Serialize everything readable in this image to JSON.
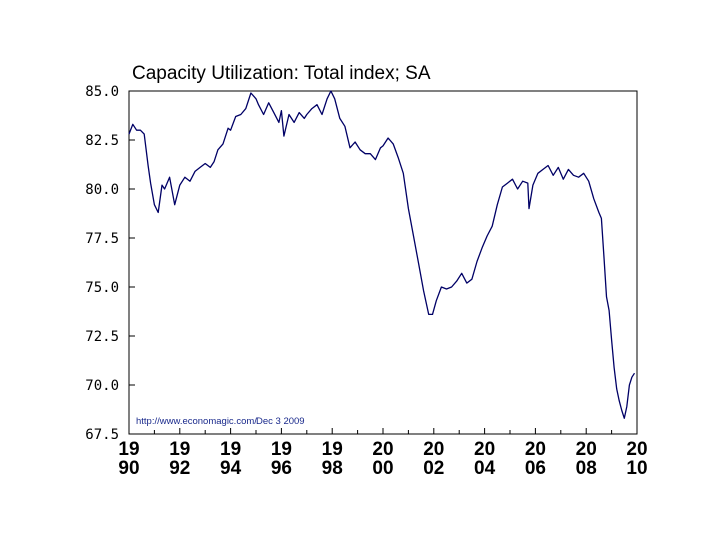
{
  "chart_data": {
    "type": "line",
    "title": "Capacity Utilization: Total index; SA",
    "source_note": "http://www.economagic.com/",
    "source_date": "Dec 3 2009",
    "xlabel": "",
    "ylabel": "",
    "xlim": [
      1990,
      2010
    ],
    "ylim": [
      67.5,
      85.0
    ],
    "grid": false,
    "line_color": "#000066",
    "yticks": [
      "85.0",
      "82.5",
      "80.0",
      "77.5",
      "75.0",
      "72.5",
      "70.0",
      "67.5"
    ],
    "xticks": [
      {
        "year": 1990,
        "top": "19",
        "bottom": "90"
      },
      {
        "year": 1992,
        "top": "19",
        "bottom": "92"
      },
      {
        "year": 1994,
        "top": "19",
        "bottom": "94"
      },
      {
        "year": 1996,
        "top": "19",
        "bottom": "96"
      },
      {
        "year": 1998,
        "top": "19",
        "bottom": "98"
      },
      {
        "year": 2000,
        "top": "20",
        "bottom": "00"
      },
      {
        "year": 2002,
        "top": "20",
        "bottom": "02"
      },
      {
        "year": 2004,
        "top": "20",
        "bottom": "04"
      },
      {
        "year": 2006,
        "top": "20",
        "bottom": "06"
      },
      {
        "year": 2008,
        "top": "20",
        "bottom": "08"
      },
      {
        "year": 2010,
        "top": "20",
        "bottom": "10"
      }
    ],
    "series": [
      {
        "name": "Capacity Utilization: Total index; SA",
        "x": [
          1990.0,
          1990.15,
          1990.3,
          1990.45,
          1990.6,
          1990.75,
          1990.85,
          1991.0,
          1991.15,
          1991.3,
          1991.4,
          1991.6,
          1991.8,
          1992.0,
          1992.2,
          1992.4,
          1992.6,
          1992.8,
          1993.0,
          1993.2,
          1993.35,
          1993.5,
          1993.7,
          1993.9,
          1994.0,
          1994.2,
          1994.4,
          1994.6,
          1994.8,
          1995.0,
          1995.1,
          1995.3,
          1995.5,
          1995.7,
          1995.9,
          1996.0,
          1996.1,
          1996.3,
          1996.5,
          1996.7,
          1996.9,
          1997.0,
          1997.2,
          1997.4,
          1997.6,
          1997.8,
          1997.95,
          1998.1,
          1998.3,
          1998.5,
          1998.7,
          1998.9,
          1999.1,
          1999.3,
          1999.5,
          1999.7,
          1999.9,
          2000.0,
          2000.2,
          2000.4,
          2000.6,
          2000.8,
          2001.0,
          2001.2,
          2001.4,
          2001.6,
          2001.8,
          2001.95,
          2002.1,
          2002.3,
          2002.5,
          2002.7,
          2002.9,
          2003.1,
          2003.3,
          2003.5,
          2003.7,
          2003.9,
          2004.1,
          2004.3,
          2004.5,
          2004.7,
          2004.9,
          2005.1,
          2005.3,
          2005.5,
          2005.7,
          2005.75,
          2005.9,
          2006.1,
          2006.3,
          2006.5,
          2006.7,
          2006.9,
          2007.1,
          2007.3,
          2007.5,
          2007.7,
          2007.9,
          2008.1,
          2008.3,
          2008.5,
          2008.6,
          2008.7,
          2008.8,
          2008.9,
          2009.0,
          2009.1,
          2009.2,
          2009.3,
          2009.4,
          2009.5,
          2009.6,
          2009.7,
          2009.8,
          2009.9
        ],
        "y": [
          82.8,
          83.3,
          83.0,
          83.0,
          82.8,
          81.2,
          80.3,
          79.2,
          78.8,
          80.2,
          80.0,
          80.6,
          79.2,
          80.2,
          80.6,
          80.4,
          80.9,
          81.1,
          81.3,
          81.1,
          81.4,
          82.0,
          82.3,
          83.1,
          83.0,
          83.7,
          83.8,
          84.1,
          84.9,
          84.6,
          84.3,
          83.8,
          84.4,
          83.9,
          83.4,
          84.0,
          82.7,
          83.8,
          83.4,
          83.9,
          83.6,
          83.8,
          84.1,
          84.3,
          83.8,
          84.6,
          85.0,
          84.6,
          83.6,
          83.2,
          82.1,
          82.4,
          82.0,
          81.8,
          81.8,
          81.5,
          82.1,
          82.2,
          82.6,
          82.3,
          81.6,
          80.8,
          79.0,
          77.6,
          76.2,
          74.8,
          73.6,
          73.6,
          74.3,
          75.0,
          74.9,
          75.0,
          75.3,
          75.7,
          75.2,
          75.4,
          76.3,
          77.0,
          77.6,
          78.1,
          79.2,
          80.1,
          80.3,
          80.5,
          80.0,
          80.4,
          80.3,
          79.0,
          80.2,
          80.8,
          81.0,
          81.2,
          80.7,
          81.1,
          80.5,
          81.0,
          80.7,
          80.6,
          80.8,
          80.4,
          79.5,
          78.8,
          78.5,
          76.5,
          74.5,
          73.8,
          72.3,
          70.9,
          69.8,
          69.2,
          68.7,
          68.3,
          68.9,
          70.0,
          70.4,
          70.6
        ]
      }
    ]
  }
}
